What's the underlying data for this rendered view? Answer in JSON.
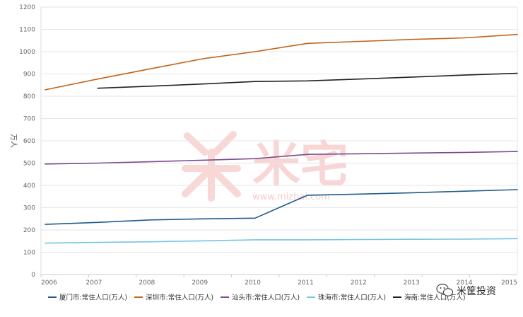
{
  "chart_data": {
    "type": "line",
    "ylabel": "万人",
    "ylim": [
      0,
      1200
    ],
    "yticks": [
      0,
      100,
      200,
      300,
      400,
      500,
      600,
      700,
      800,
      900,
      1000,
      1100,
      1200
    ],
    "x": [
      "2006",
      "2007",
      "2008",
      "2009",
      "2010",
      "2011",
      "2012",
      "2013",
      "2014",
      "2015"
    ],
    "grid": true,
    "legend_position": "bottom",
    "series": [
      {
        "name": "厦门市:常住人口(万人)",
        "color": "#1f5a8f",
        "values": [
          225,
          234,
          245,
          250,
          253,
          356,
          361,
          367,
          374,
          381
        ]
      },
      {
        "name": "深圳市:常住人口(万人)",
        "color": "#c2641a",
        "values": [
          829,
          877,
          923,
          968,
          1000,
          1037,
          1046,
          1055,
          1062,
          1077
        ]
      },
      {
        "name": "汕头市:常住人口(万人)",
        "color": "#7b4b8c",
        "values": [
          496,
          500,
          506,
          513,
          520,
          539,
          542,
          545,
          548,
          552
        ]
      },
      {
        "name": "珠海市:常住人口(万人)",
        "color": "#76c4e3",
        "values": [
          141,
          144,
          147,
          151,
          156,
          156,
          157,
          158,
          159,
          161
        ]
      },
      {
        "name": "海南:常住人口(万人)",
        "color": "#222222",
        "values": [
          null,
          836,
          845,
          855,
          866,
          869,
          877,
          886,
          895,
          903
        ]
      }
    ]
  },
  "watermark": {
    "text": "米宅",
    "url": "www.mizhai.com",
    "color": "#f3b6b6"
  },
  "brand": {
    "text": "米筐投资",
    "icon": "wechat-icon"
  }
}
